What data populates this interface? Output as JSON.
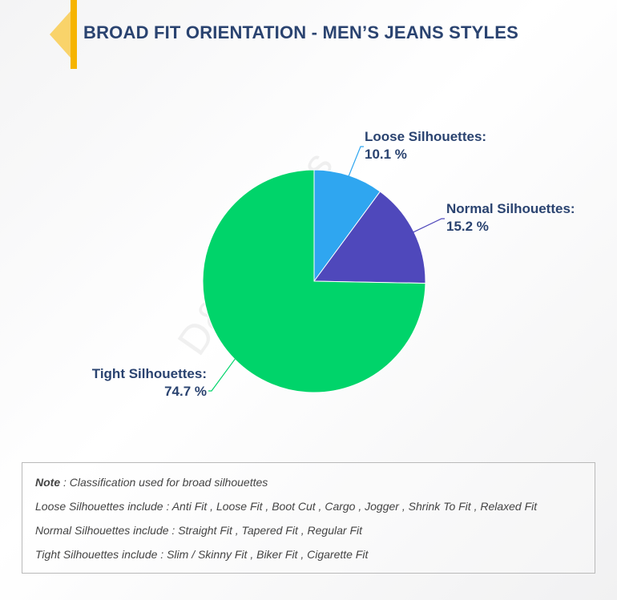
{
  "header": {
    "title": "BROAD FIT ORIENTATION - MEN’S JEANS STYLES"
  },
  "colors": {
    "accent": "#f6b400",
    "title": "#2a4370"
  },
  "watermark": "D&J Reports",
  "chart_data": {
    "type": "pie",
    "title": "",
    "slices": [
      {
        "label": "Loose Silhouettes:",
        "value_label": "10.1 %",
        "value": 10.1,
        "color": "#2fa6f0"
      },
      {
        "label": "Normal Silhouettes:",
        "value_label": "15.2 %",
        "value": 15.2,
        "color": "#4f48bb"
      },
      {
        "label": "Tight Silhouettes:",
        "value_label": "74.7 %",
        "value": 74.7,
        "color": "#00d46a"
      }
    ]
  },
  "note": {
    "prefix": "Note",
    "text": " : Classification used for broad silhouettes",
    "lines": [
      "Loose Silhouettes include : Anti Fit , Loose Fit , Boot Cut , Cargo , Jogger , Shrink To Fit , Relaxed Fit",
      "Normal Silhouettes include : Straight Fit , Tapered Fit , Regular Fit",
      "Tight Silhouettes include : Slim / Skinny Fit , Biker Fit , Cigarette Fit"
    ]
  }
}
